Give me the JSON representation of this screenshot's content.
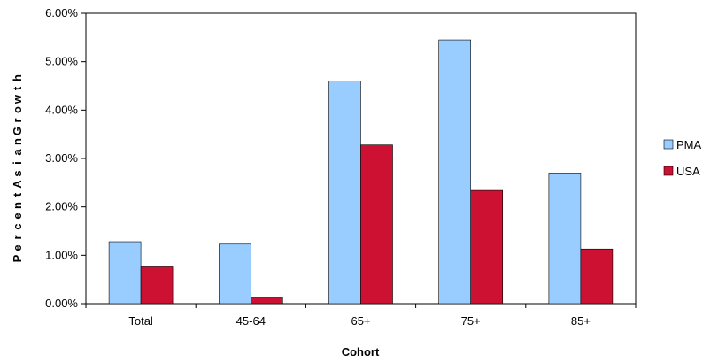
{
  "chart_data": {
    "type": "bar",
    "categories": [
      "Total",
      "45-64",
      "65+",
      "75+",
      "85+"
    ],
    "series": [
      {
        "name": "PMA",
        "color": "#99ccff",
        "values": [
          1.28,
          1.23,
          4.6,
          5.45,
          2.7
        ]
      },
      {
        "name": "USA",
        "color": "#cc1133",
        "values": [
          0.76,
          0.13,
          3.28,
          2.34,
          1.13
        ]
      }
    ],
    "xlabel": "Cohort",
    "ylabel": "PercentAsianGrowth",
    "ylim": [
      0,
      6
    ],
    "yticks": [
      0,
      1,
      2,
      3,
      4,
      5,
      6
    ],
    "ytick_labels": [
      "0.00%",
      "1.00%",
      "2.00%",
      "3.00%",
      "4.00%",
      "5.00%",
      "6.00%"
    ],
    "grid": false,
    "legend_position": "right"
  }
}
